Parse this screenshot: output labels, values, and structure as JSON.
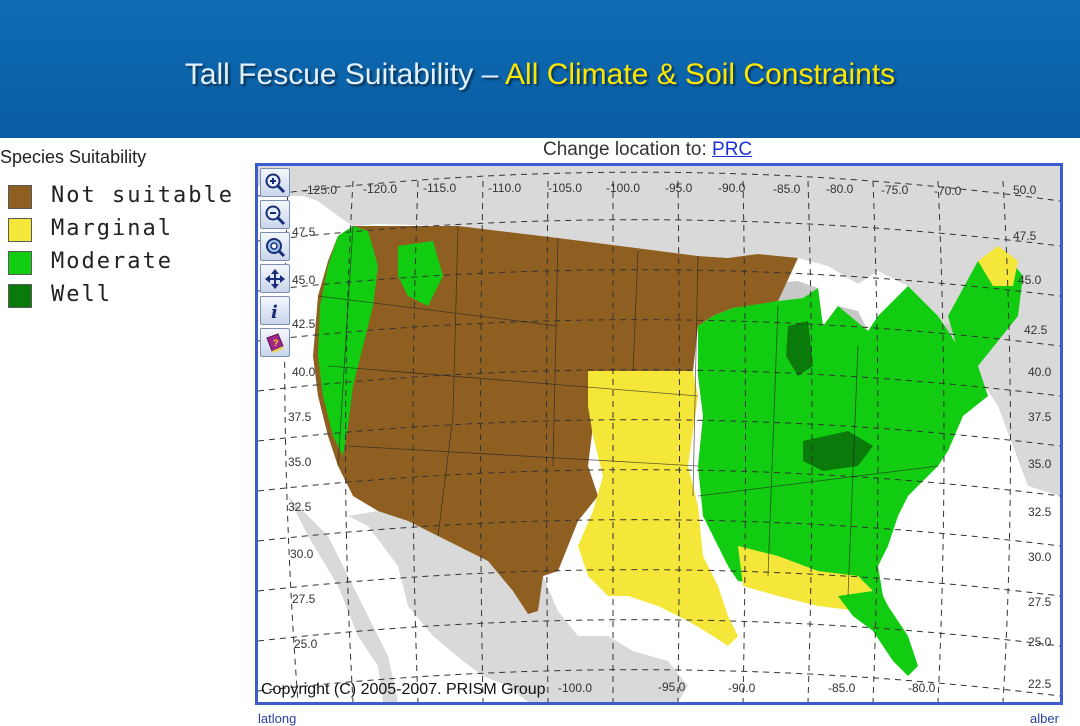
{
  "slide": {
    "title_main": "Tall Fescue Suitability",
    "title_sep": "–",
    "title_highlight": "All Climate & Soil Constraints"
  },
  "legend": {
    "title": "Species Suitability",
    "items": [
      {
        "label": "Not suitable",
        "color": "#8f5f22"
      },
      {
        "label": "Marginal",
        "color": "#f5e63a"
      },
      {
        "label": "Moderate",
        "color": "#11cc11"
      },
      {
        "label": "Well",
        "color": "#0a7a0a"
      }
    ]
  },
  "map": {
    "change_location_label": "Change location to:",
    "change_location_link": "PRC",
    "copyright": "Copyright (C) 2005-2007. PRISM Group",
    "footer_left": "latlong",
    "footer_right": "alber",
    "top_longitude_labels": [
      "-125.0",
      "-120.0",
      "-115.0",
      "-110.0",
      "-105.0",
      "-100.0",
      "-95.0",
      "-90.0",
      "-85.0",
      "-80.0",
      "-75.0",
      "-70.0"
    ],
    "bottom_longitude_labels": [
      "-100.0",
      "-95.0",
      "-90.0",
      "-85.0",
      "-80.0"
    ],
    "right_latitude_labels": [
      "50.0",
      "47.5",
      "45.0",
      "42.5",
      "40.0",
      "37.5",
      "35.0",
      "32.5",
      "30.0",
      "27.5",
      "25.0",
      "22.5"
    ],
    "left_latitude_labels": [
      "47.5",
      "45.0",
      "42.5",
      "40.0",
      "37.5",
      "35.0",
      "32.5",
      "30.0",
      "27.5",
      "25.0"
    ],
    "ocean_color": "#ffffff",
    "land_color": "#d9d9d9",
    "tools": [
      "zoom-in-icon",
      "zoom-out-icon",
      "full-extent-icon",
      "pan-icon",
      "info-icon",
      "help-book-icon"
    ]
  }
}
